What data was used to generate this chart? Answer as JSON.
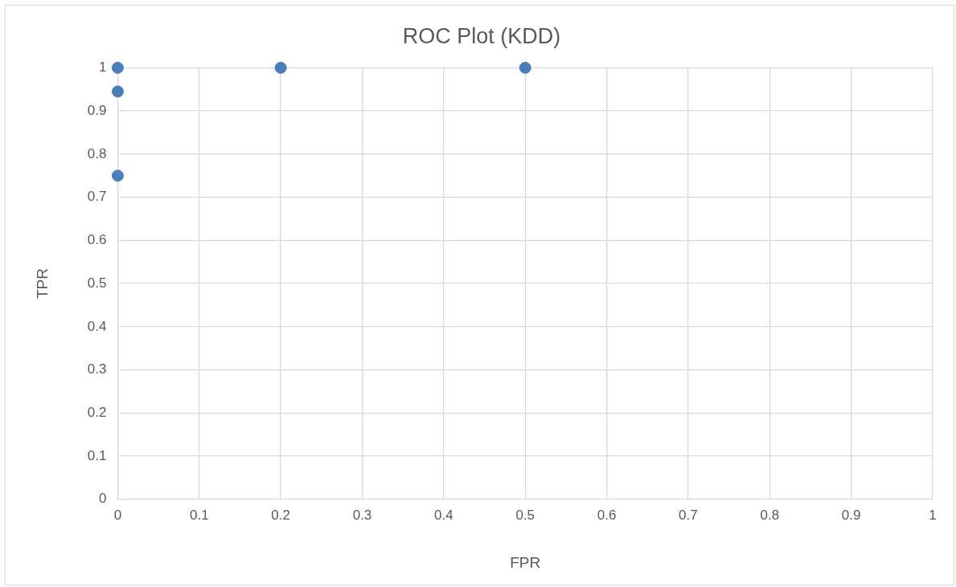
{
  "chart_data": {
    "type": "scatter",
    "title": "ROC Plot (KDD)",
    "xlabel": "FPR",
    "ylabel": "TPR",
    "x": [
      0,
      0,
      0,
      0.2,
      0.5
    ],
    "series": [
      {
        "color": "#4a7ebb",
        "values": [
          1,
          0.945,
          0.75,
          1,
          1
        ]
      }
    ],
    "xlim": [
      0,
      1
    ],
    "xticks": [
      0,
      0.1,
      0.2,
      0.3,
      0.4,
      0.5,
      0.6,
      0.7,
      0.8,
      0.9,
      1
    ],
    "ylim": [
      0,
      1
    ],
    "yticks": [
      0,
      0.1,
      0.2,
      0.3,
      0.4,
      0.5,
      0.6,
      0.7,
      0.8,
      0.9,
      1
    ],
    "grid": true,
    "legend": false,
    "marker": "circle"
  }
}
